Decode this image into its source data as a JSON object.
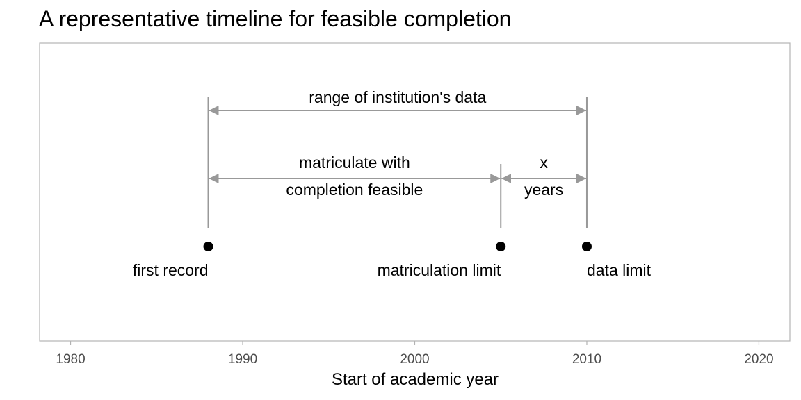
{
  "chart_data": {
    "type": "scatter",
    "title": "A representative timeline for feasible completion",
    "xlabel": "Start of academic year",
    "ylabel": "",
    "xlim": [
      1978.2,
      2021.8
    ],
    "x_ticks": [
      1980,
      1990,
      2000,
      2010,
      2020
    ],
    "grid": false,
    "colors": {
      "point": "#000000",
      "spans": "#999999",
      "frame": "#b3b3b3",
      "tick_text": "#4d4d4d"
    },
    "points": [
      {
        "x": 1988,
        "label": "first record"
      },
      {
        "x": 2005,
        "label": "matriculation limit"
      },
      {
        "x": 2010,
        "label": "data limit"
      }
    ],
    "vertical_markers": [
      1988,
      2005,
      2010
    ],
    "spans": [
      {
        "from": 1988,
        "to": 2010,
        "label": "range of institution's data"
      },
      {
        "from": 1988,
        "to": 2005,
        "label_lines": [
          "matriculate with",
          "completion feasible"
        ]
      },
      {
        "from": 2005,
        "to": 2010,
        "label_lines": [
          "x",
          "years"
        ]
      }
    ]
  }
}
